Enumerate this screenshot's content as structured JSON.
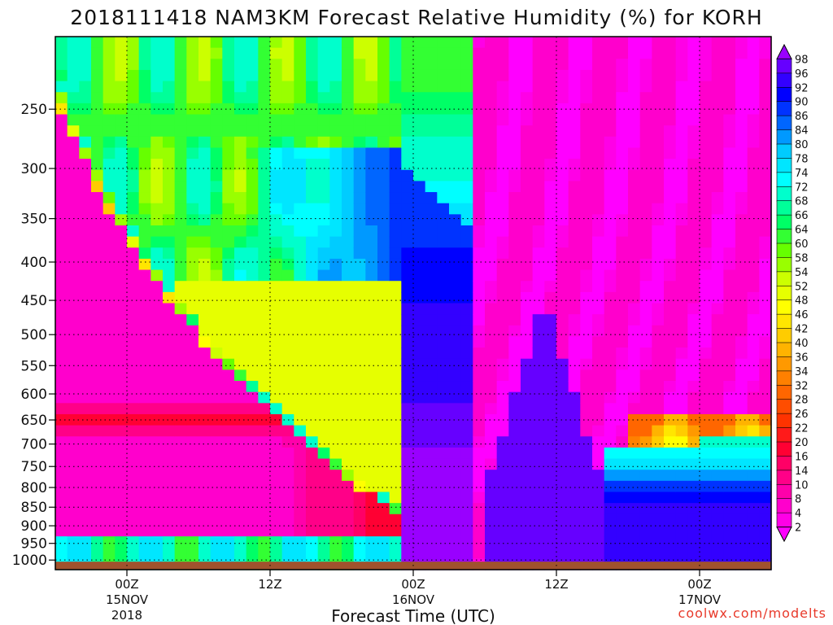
{
  "chart_data": {
    "type": "heatmap",
    "title": "2018111418 NAM3KM Forecast Relative Humidity (%) for KORH",
    "xlabel": "Forecast Time (UTC)",
    "ylabel": "",
    "credit": "coolwx.com/modelts",
    "y_scale": "log",
    "y_inverted": true,
    "grid": true,
    "ylim": [
      1030,
      200
    ],
    "y_ticks": [
      250,
      300,
      350,
      400,
      450,
      500,
      550,
      600,
      650,
      700,
      750,
      800,
      850,
      900,
      950,
      1000
    ],
    "x_ticks": [
      {
        "hours": 6,
        "line1": "00Z",
        "line2": "15NOV",
        "line3": "2018"
      },
      {
        "hours": 18,
        "line1": "12Z",
        "line2": "",
        "line3": ""
      },
      {
        "hours": 30,
        "line1": "00Z",
        "line2": "16NOV",
        "line3": ""
      },
      {
        "hours": 42,
        "line1": "12Z",
        "line2": "",
        "line3": ""
      },
      {
        "hours": 54,
        "line1": "00Z",
        "line2": "17NOV",
        "line3": ""
      }
    ],
    "xlim": [
      0,
      60
    ],
    "colorbar": {
      "levels": [
        2,
        4,
        8,
        10,
        14,
        16,
        20,
        22,
        26,
        28,
        32,
        34,
        36,
        40,
        42,
        46,
        48,
        52,
        54,
        58,
        60,
        64,
        66,
        68,
        72,
        74,
        78,
        80,
        84,
        86,
        90,
        92,
        96,
        98
      ],
      "colors": [
        "#ff00ff",
        "#ff00e6",
        "#ff00cc",
        "#ff00aa",
        "#ff0088",
        "#ff0066",
        "#ff0033",
        "#ff1a1a",
        "#ff3300",
        "#ff4d00",
        "#ff6600",
        "#ff8000",
        "#ff9900",
        "#ffb300",
        "#ffcc00",
        "#ffe600",
        "#ffff00",
        "#e6ff00",
        "#ccff00",
        "#99ff00",
        "#66ff00",
        "#33ff33",
        "#00ff66",
        "#00ff99",
        "#00ffcc",
        "#00ffff",
        "#00e6ff",
        "#00ccff",
        "#0099ff",
        "#0066ff",
        "#0033ff",
        "#0000ff",
        "#3300ff",
        "#6600ff",
        "#9900ff"
      ]
    },
    "terrain_color": "#a0522d",
    "surface_pressure_hpa": 1005,
    "humidity_zones": [
      {
        "name": "dry-upper-right",
        "rh": 4
      },
      {
        "name": "dry-left-wedge",
        "rh": 6
      },
      {
        "name": "moist-upper-left",
        "rh": 62
      },
      {
        "name": "saturated-core",
        "rh": 96
      }
    ]
  }
}
